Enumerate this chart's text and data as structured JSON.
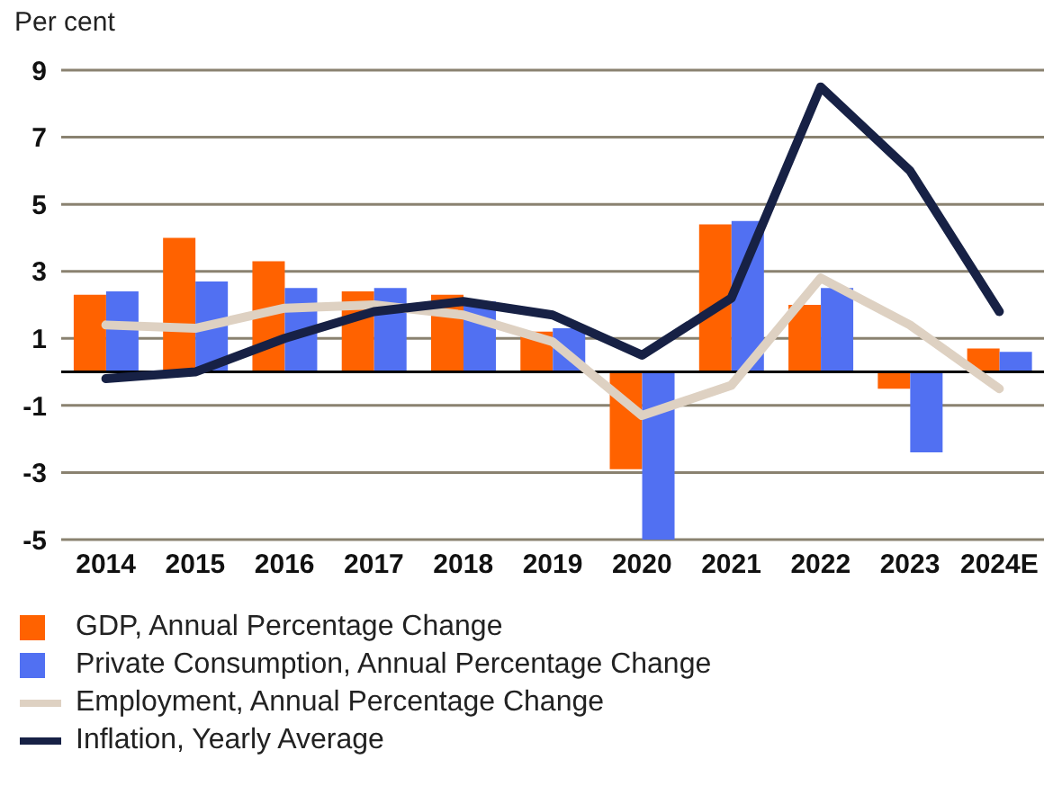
{
  "chart_data": {
    "type": "bar",
    "annotations": [
      "Per cent"
    ],
    "categories": [
      "2014",
      "2015",
      "2016",
      "2017",
      "2018",
      "2019",
      "2020",
      "2021",
      "2022",
      "2023",
      "2024E"
    ],
    "series": [
      {
        "name": "GDP, Annual Percentage Change",
        "color": "#ff6200",
        "values": [
          2.3,
          4.0,
          3.3,
          2.4,
          2.3,
          1.2,
          -2.9,
          4.4,
          2.0,
          -0.5,
          0.7
        ]
      },
      {
        "name": "Private Consumption, Annual Percentage Change",
        "color": "#5170f2",
        "values": [
          2.4,
          2.7,
          2.5,
          2.5,
          2.1,
          1.3,
          -5.0,
          4.5,
          2.5,
          -2.4,
          0.6
        ]
      },
      {
        "name": "Employment, Annual Percentage Change",
        "type": "line",
        "color": "#ded1c2",
        "values": [
          1.4,
          1.3,
          1.9,
          2.0,
          1.7,
          0.9,
          -1.3,
          -0.4,
          2.8,
          1.4,
          -0.5
        ]
      },
      {
        "name": "Inflation, Yearly Average",
        "type": "line",
        "color": "#172145",
        "values": [
          -0.2,
          0.0,
          1.0,
          1.8,
          2.1,
          1.7,
          0.5,
          2.2,
          8.5,
          6.0,
          1.8
        ]
      }
    ],
    "ylim": [
      -5,
      9
    ],
    "yticks": [
      -5,
      -3,
      -1,
      1,
      3,
      5,
      7,
      9
    ],
    "grid": "y",
    "legend": "bottom",
    "marker": "none",
    "line_style": "solid"
  }
}
